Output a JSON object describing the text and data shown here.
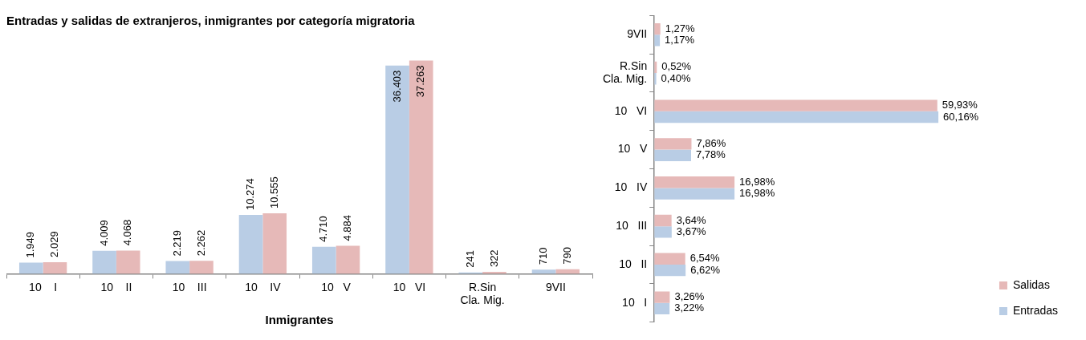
{
  "chart_data": [
    {
      "type": "bar",
      "title": "Entradas y salidas de extranjeros, inmigrantes por categoría migratoria",
      "xlabel": "Inmigrantes",
      "categories": [
        "10    I",
        "10    II",
        "10    III",
        "10    IV",
        "10   V",
        "10   VI",
        "R.Sin Cla. Mig.",
        "9VII"
      ],
      "tick_labels": "x",
      "grid": false,
      "legend": false,
      "series": [
        {
          "color": "#b9cde5",
          "values": [
            1949,
            4009,
            2219,
            10274,
            4710,
            36403,
            241,
            710
          ],
          "value_labels": [
            "1.949",
            "4.009",
            "2.219",
            "10.274",
            "4.710",
            "36.403",
            "241",
            "710"
          ]
        },
        {
          "color": "#e6b9b8",
          "values": [
            2029,
            4068,
            2262,
            10555,
            4884,
            37263,
            322,
            790
          ],
          "value_labels": [
            "2.029",
            "4.068",
            "2.262",
            "10.555",
            "4.884",
            "37.263",
            "322",
            "790"
          ]
        }
      ]
    },
    {
      "type": "bar",
      "orientation": "horizontal",
      "categories": [
        "9VII",
        "R.Sin Cla. Mig.",
        "10   VI",
        "10   V",
        "10   IV",
        "10   III",
        "10   II",
        "10   I"
      ],
      "tick_labels": "y",
      "grid": false,
      "legend": "right",
      "series": [
        {
          "name": "Salidas",
          "color": "#e6b9b8",
          "values": [
            1.27,
            0.52,
            59.93,
            7.86,
            16.98,
            3.64,
            6.54,
            3.26
          ],
          "value_labels": [
            "1,27%",
            "0,52%",
            "59,93%",
            "7,86%",
            "16,98%",
            "3,64%",
            "6,54%",
            "3,26%"
          ]
        },
        {
          "name": "Entradas",
          "color": "#b9cde5",
          "values": [
            1.17,
            0.4,
            60.16,
            7.78,
            16.98,
            3.67,
            6.62,
            3.22
          ],
          "value_labels": [
            "1,17%",
            "0,40%",
            "60,16%",
            "7,78%",
            "16,98%",
            "3,67%",
            "6,62%",
            "3,22%"
          ]
        }
      ]
    }
  ]
}
